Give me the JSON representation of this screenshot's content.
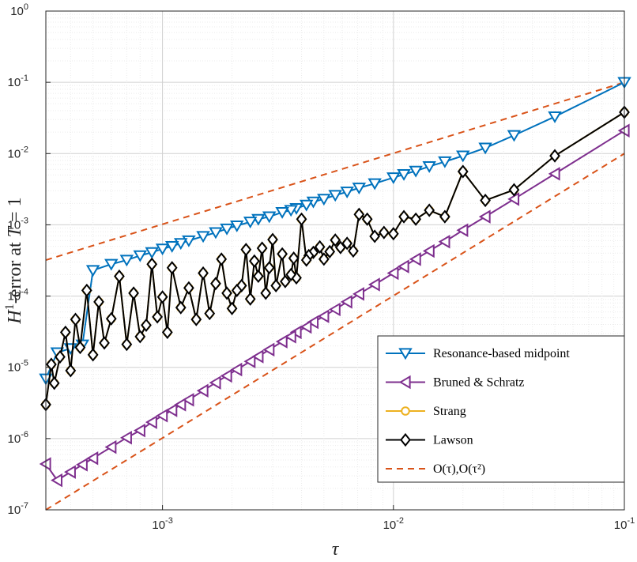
{
  "chart_data": {
    "type": "line",
    "xscale": "log",
    "yscale": "log",
    "xlim": [
      0.0003125,
      0.1
    ],
    "ylim": [
      1e-07,
      1
    ],
    "xlabel": "τ",
    "ylabel": {
      "H": "H",
      "sup": "1",
      "rest": "-error at ",
      "T": "T",
      "eq": " = 1"
    },
    "grid": true,
    "legend_position": "bottom-right",
    "x_ticks": [
      {
        "base": "10",
        "exp": "-3",
        "value": 0.001
      },
      {
        "base": "10",
        "exp": "-2",
        "value": 0.01
      },
      {
        "base": "10",
        "exp": "-1",
        "value": 0.1
      }
    ],
    "y_ticks": [
      {
        "base": "10",
        "exp": "-7",
        "value": 1e-07
      },
      {
        "base": "10",
        "exp": "-6",
        "value": 1e-06
      },
      {
        "base": "10",
        "exp": "-5",
        "value": 1e-05
      },
      {
        "base": "10",
        "exp": "-4",
        "value": 0.0001
      },
      {
        "base": "10",
        "exp": "-3",
        "value": 0.001
      },
      {
        "base": "10",
        "exp": "-2",
        "value": 0.01
      },
      {
        "base": "10",
        "exp": "-1",
        "value": 0.1
      },
      {
        "base": "10",
        "exp": "0",
        "value": 1
      }
    ],
    "series": [
      {
        "name": "Resonance-based midpoint",
        "color": "#0072BD",
        "marker": "triangle-down",
        "x": [
          0.1,
          0.05,
          0.0333,
          0.025,
          0.02,
          0.0167,
          0.0143,
          0.0125,
          0.0111,
          0.01,
          0.0083,
          0.0071,
          0.0063,
          0.0056,
          0.005,
          0.0045,
          0.0042,
          0.0038,
          0.0036,
          0.0033,
          0.0029,
          0.0026,
          0.0024,
          0.0021,
          0.0019,
          0.0017,
          0.0015,
          0.0013,
          0.0012,
          0.0011,
          0.001,
          0.0009,
          0.0008,
          0.0007,
          0.0006,
          0.0005,
          0.00045,
          0.0004,
          0.00035,
          0.0003125
        ],
        "y": [
          0.1,
          0.033,
          0.018,
          0.012,
          0.0093,
          0.0077,
          0.0066,
          0.0057,
          0.0051,
          0.0046,
          0.0038,
          0.0033,
          0.0029,
          0.0026,
          0.0023,
          0.0021,
          0.0019,
          0.0017,
          0.0016,
          0.0015,
          0.0013,
          0.0012,
          0.0011,
          0.00097,
          0.00088,
          0.00078,
          0.00069,
          0.0006,
          0.00055,
          0.0005,
          0.00046,
          0.00041,
          0.00037,
          0.00032,
          0.00028,
          0.00023,
          2.07e-05,
          1.84e-05,
          1.61e-05,
          6.9e-06
        ]
      },
      {
        "name": "Bruned & Schratz",
        "color": "#7E2F8E",
        "marker": "triangle-left",
        "x": [
          0.1,
          0.05,
          0.0333,
          0.025,
          0.02,
          0.0167,
          0.0143,
          0.0125,
          0.0111,
          0.01,
          0.0083,
          0.0071,
          0.0063,
          0.0056,
          0.005,
          0.0045,
          0.0042,
          0.0038,
          0.0036,
          0.0033,
          0.0029,
          0.0026,
          0.0024,
          0.0021,
          0.0019,
          0.0017,
          0.0015,
          0.0013,
          0.0012,
          0.0011,
          0.001,
          0.0009,
          0.0008,
          0.0007,
          0.0006,
          0.0005,
          0.00045,
          0.0004,
          0.00035,
          0.0003125
        ],
        "y": [
          0.021,
          0.0052,
          0.0023,
          0.0013,
          0.00084,
          0.00058,
          0.00043,
          0.00033,
          0.00026,
          0.00021,
          0.000145,
          0.000107,
          8.3e-05,
          6.5e-05,
          5.2e-05,
          4.3e-05,
          3.7e-05,
          3.1e-05,
          2.7e-05,
          2.3e-05,
          1.77e-05,
          1.42e-05,
          1.21e-05,
          9.3e-06,
          7.6e-06,
          6.1e-06,
          4.7e-06,
          3.5e-06,
          3e-06,
          2.5e-06,
          2.1e-06,
          1.7e-06,
          1.3e-06,
          1.03e-06,
          7.6e-07,
          5.3e-07,
          4.3e-07,
          3.4e-07,
          2.6e-07,
          4.4e-07
        ]
      },
      {
        "name": "Strang",
        "color": "#EDB120",
        "marker": "circle",
        "x": [
          0.1,
          0.05,
          0.0333,
          0.025,
          0.02,
          0.0167,
          0.0143,
          0.0125,
          0.0111,
          0.01,
          0.0091,
          0.0083,
          0.0077,
          0.0071,
          0.0067,
          0.0063,
          0.0059,
          0.0056,
          0.0053,
          0.005,
          0.0048,
          0.0045,
          0.0043,
          0.0042,
          0.004,
          0.0038,
          0.0037,
          0.0036,
          0.0034,
          0.0033,
          0.0031,
          0.003,
          0.0029,
          0.0028,
          0.0027,
          0.0026,
          0.0025,
          0.0024,
          0.0023,
          0.0022,
          0.0021,
          0.002,
          0.0019,
          0.0018,
          0.0017,
          0.0016,
          0.0015,
          0.0014,
          0.0013,
          0.0012,
          0.0011,
          0.00105,
          0.001,
          0.00095,
          0.0009,
          0.00085,
          0.0008,
          0.00075,
          0.0007,
          0.00065,
          0.0006,
          0.00056,
          0.00053,
          0.0005,
          0.00047,
          0.00044,
          0.00042,
          0.0004,
          0.00038,
          0.00036,
          0.00034,
          0.00033,
          0.0003125
        ],
        "y": [
          0.038,
          0.0093,
          0.0031,
          0.0022,
          0.0056,
          0.0013,
          0.0016,
          0.0012,
          0.0013,
          0.00075,
          0.00078,
          0.00069,
          0.0012,
          0.0014,
          0.00043,
          0.00055,
          0.00048,
          0.00061,
          0.00042,
          0.00033,
          0.00049,
          0.00041,
          0.00037,
          0.00032,
          0.0012,
          0.00018,
          0.00034,
          0.0002,
          0.00016,
          0.00039,
          0.00014,
          0.00062,
          0.00025,
          0.00011,
          0.00047,
          0.00019,
          0.00031,
          9.1e-05,
          0.00045,
          0.00014,
          0.00012,
          6.7e-05,
          0.00011,
          0.00033,
          0.00015,
          5.7e-05,
          0.00021,
          4.7e-05,
          0.00013,
          6.9e-05,
          0.00025,
          3.1e-05,
          9.7e-05,
          5.1e-05,
          0.00028,
          3.9e-05,
          2.7e-05,
          0.00011,
          2.1e-05,
          0.00019,
          4.8e-05,
          2.2e-05,
          8.3e-05,
          1.5e-05,
          0.00012,
          1.9e-05,
          4.7e-05,
          9e-06,
          3.1e-05,
          1.4e-05,
          6e-06,
          1.1e-05,
          3e-06
        ]
      },
      {
        "name": "Lawson",
        "color": "#000000",
        "marker": "diamond",
        "x": [
          0.1,
          0.05,
          0.0333,
          0.025,
          0.02,
          0.0167,
          0.0143,
          0.0125,
          0.0111,
          0.01,
          0.0091,
          0.0083,
          0.0077,
          0.0071,
          0.0067,
          0.0063,
          0.0059,
          0.0056,
          0.0053,
          0.005,
          0.0048,
          0.0045,
          0.0043,
          0.0042,
          0.004,
          0.0038,
          0.0037,
          0.0036,
          0.0034,
          0.0033,
          0.0031,
          0.003,
          0.0029,
          0.0028,
          0.0027,
          0.0026,
          0.0025,
          0.0024,
          0.0023,
          0.0022,
          0.0021,
          0.002,
          0.0019,
          0.0018,
          0.0017,
          0.0016,
          0.0015,
          0.0014,
          0.0013,
          0.0012,
          0.0011,
          0.00105,
          0.001,
          0.00095,
          0.0009,
          0.00085,
          0.0008,
          0.00075,
          0.0007,
          0.00065,
          0.0006,
          0.00056,
          0.00053,
          0.0005,
          0.00047,
          0.00044,
          0.00042,
          0.0004,
          0.00038,
          0.00036,
          0.00034,
          0.00033,
          0.0003125
        ],
        "y": [
          0.038,
          0.0093,
          0.0031,
          0.0022,
          0.0056,
          0.0013,
          0.0016,
          0.0012,
          0.0013,
          0.00075,
          0.00078,
          0.00069,
          0.0012,
          0.0014,
          0.00043,
          0.00055,
          0.00048,
          0.00061,
          0.00042,
          0.00033,
          0.00049,
          0.00041,
          0.00037,
          0.00032,
          0.0012,
          0.00018,
          0.00034,
          0.0002,
          0.00016,
          0.00039,
          0.00014,
          0.00062,
          0.00025,
          0.00011,
          0.00047,
          0.00019,
          0.00031,
          9.1e-05,
          0.00045,
          0.00014,
          0.00012,
          6.7e-05,
          0.00011,
          0.00033,
          0.00015,
          5.7e-05,
          0.00021,
          4.7e-05,
          0.00013,
          6.9e-05,
          0.00025,
          3.1e-05,
          9.7e-05,
          5.1e-05,
          0.00028,
          3.9e-05,
          2.7e-05,
          0.00011,
          2.1e-05,
          0.00019,
          4.8e-05,
          2.2e-05,
          8.3e-05,
          1.5e-05,
          0.00012,
          1.9e-05,
          4.7e-05,
          9e-06,
          3.1e-05,
          1.4e-05,
          6e-06,
          1.1e-05,
          3e-06
        ]
      }
    ],
    "reference_lines": [
      {
        "order": 1,
        "color": "#D95319",
        "x": [
          0.0003125,
          0.1
        ],
        "y": [
          0.00032,
          0.1
        ]
      },
      {
        "order": 2,
        "color": "#D95319",
        "x": [
          0.0003125,
          0.1
        ],
        "y": [
          1e-07,
          0.01
        ]
      }
    ],
    "legend": [
      {
        "label": "Resonance-based midpoint",
        "color": "#0072BD",
        "marker": "triangle-down",
        "dashed": false
      },
      {
        "label": "Bruned & Schratz",
        "color": "#7E2F8E",
        "marker": "triangle-left",
        "dashed": false
      },
      {
        "label": "Strang",
        "color": "#EDB120",
        "marker": "circle",
        "dashed": false
      },
      {
        "label": "Lawson",
        "color": "#000000",
        "marker": "diamond",
        "dashed": false
      },
      {
        "label": "O(τ),O(τ²)",
        "color": "#D95319",
        "marker": "none",
        "dashed": true
      }
    ]
  }
}
